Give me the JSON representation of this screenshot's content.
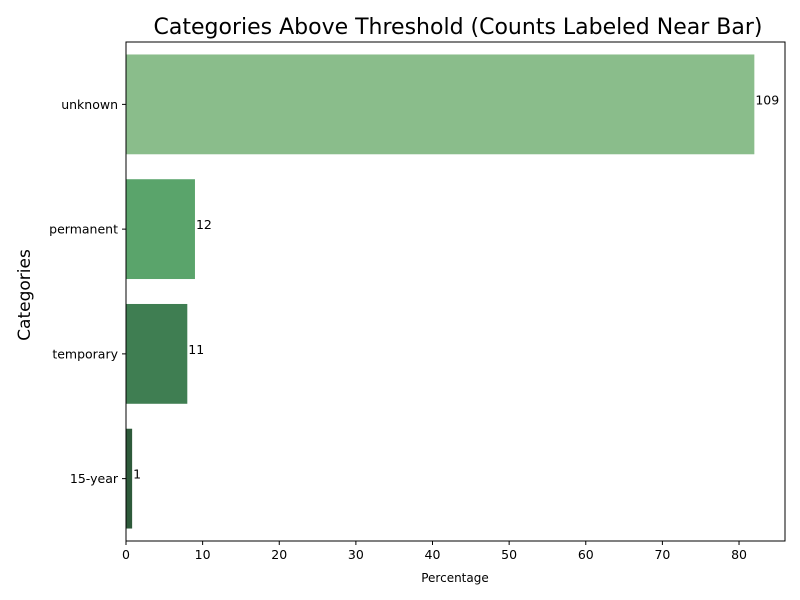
{
  "chart_data": {
    "type": "bar",
    "orientation": "horizontal",
    "title": "Categories Above Threshold (Counts Labeled Near Bar)",
    "xlabel": "Percentage",
    "ylabel": "Categories",
    "categories": [
      "unknown",
      "permanent",
      "temporary",
      "15-year"
    ],
    "values": [
      82.0,
      9.0,
      8.0,
      0.8
    ],
    "data_labels": [
      "109",
      "12",
      "11",
      "1"
    ],
    "xlim": [
      0,
      86
    ],
    "xticks": [
      0,
      10,
      20,
      30,
      40,
      50,
      60,
      70,
      80
    ],
    "bar_colors": [
      "#8abd8b",
      "#5aa46b",
      "#3f7e52",
      "#2e5a3a"
    ],
    "grid": false,
    "legend": "none"
  }
}
